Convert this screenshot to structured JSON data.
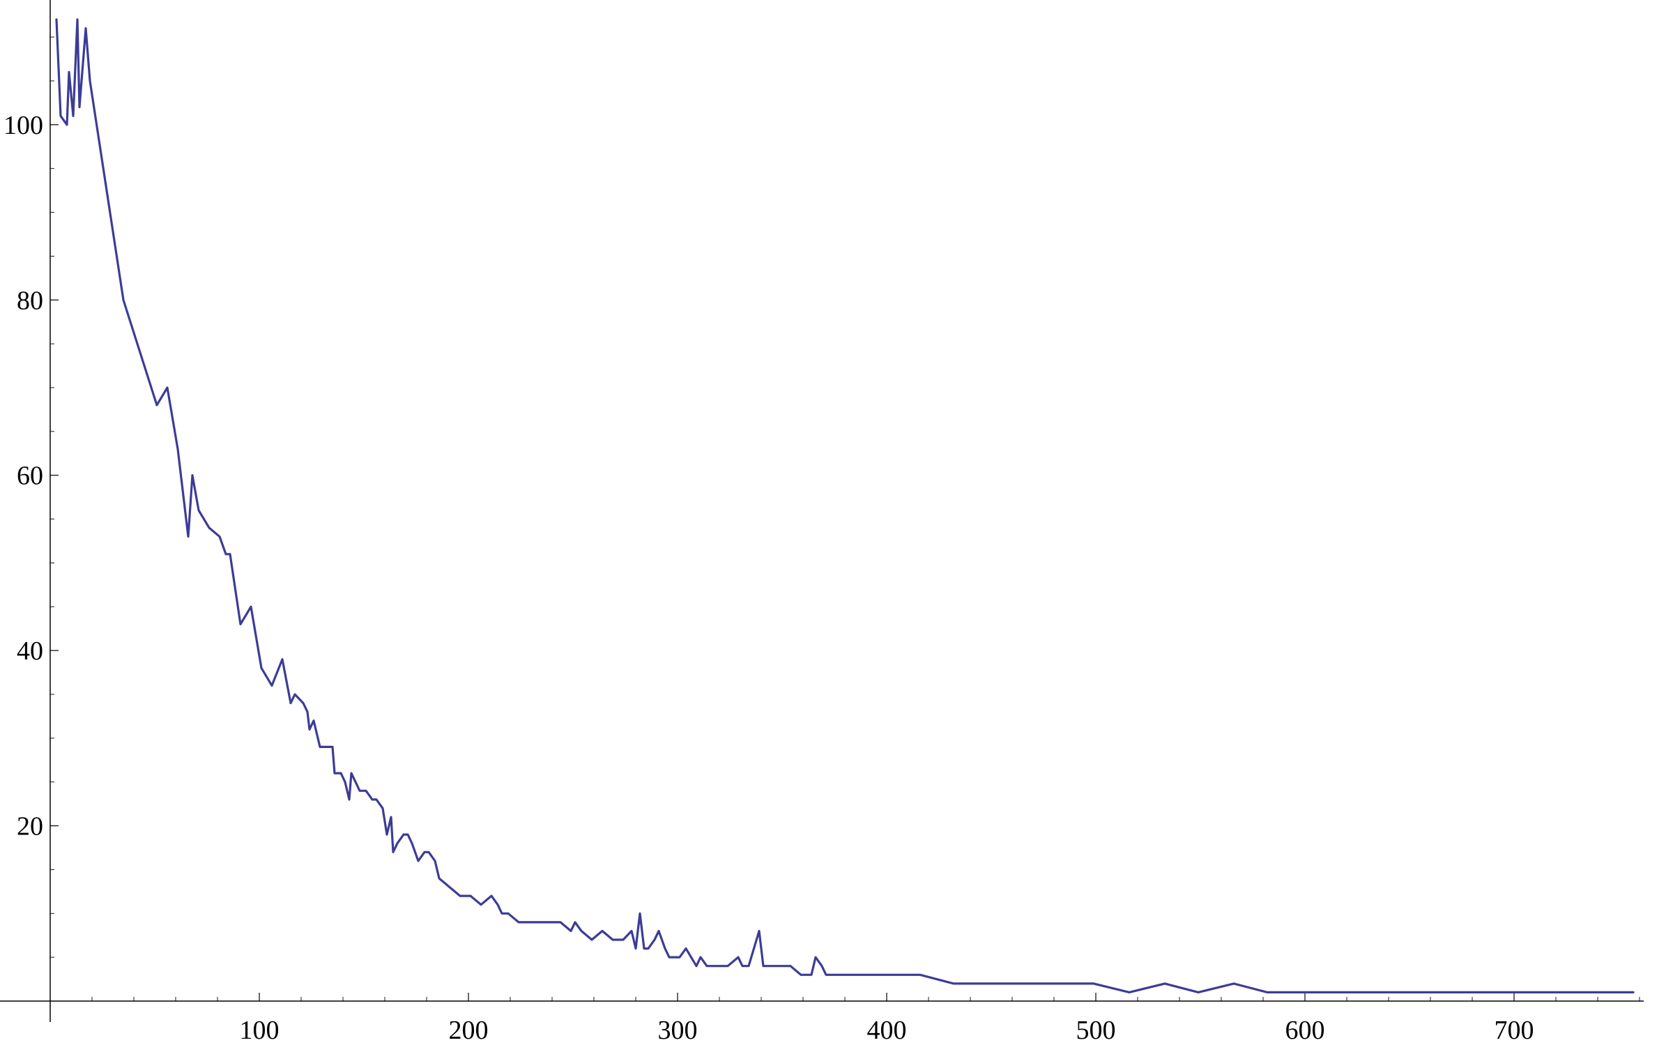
{
  "chart_data": {
    "type": "line",
    "title": "",
    "xlabel": "",
    "ylabel": "",
    "xlim": [
      0,
      760
    ],
    "ylim": [
      0,
      112
    ],
    "x_ticks": [
      100,
      200,
      300,
      400,
      500,
      600,
      700
    ],
    "y_ticks": [
      20,
      40,
      60,
      80,
      100
    ],
    "x_tick_labels": [
      "100",
      "200",
      "300",
      "400",
      "500",
      "600",
      "700"
    ],
    "y_tick_labels": [
      "20",
      "40",
      "60",
      "80",
      "100"
    ],
    "grid": false,
    "legend": "none",
    "line_color": "#3c3c96",
    "series": [
      {
        "x": [
          3,
          5,
          8,
          9,
          11,
          13,
          14,
          17,
          19,
          35,
          51,
          56,
          61,
          66,
          68,
          71,
          76,
          81,
          84,
          86,
          91,
          96,
          101,
          106,
          111,
          115,
          117,
          121,
          123,
          124,
          126,
          129,
          131,
          135,
          136,
          139,
          141,
          143,
          144,
          146,
          148,
          151,
          154,
          156,
          159,
          161,
          163,
          164,
          166,
          169,
          171,
          173,
          176,
          179,
          181,
          184,
          186,
          191,
          196,
          201,
          206,
          211,
          214,
          216,
          219,
          224,
          229,
          234,
          239,
          244,
          249,
          251,
          254,
          259,
          264,
          269,
          271,
          274,
          278,
          280,
          282,
          284,
          286,
          289,
          291,
          294,
          296,
          299,
          301,
          304,
          309,
          311,
          314,
          316,
          319,
          324,
          329,
          331,
          334,
          339,
          341,
          344,
          346,
          349,
          354,
          359,
          364,
          366,
          369,
          371,
          374,
          376,
          379,
          384,
          389,
          394,
          399,
          404,
          409,
          416,
          432,
          449,
          465,
          482,
          499,
          516,
          533,
          549,
          566,
          582,
          599,
          616,
          632,
          649,
          666,
          682,
          699,
          716,
          732,
          757
        ],
        "y": [
          112,
          101,
          100,
          106,
          101,
          112,
          102,
          111,
          105,
          80,
          68,
          70,
          63,
          53,
          60,
          56,
          54,
          53,
          51,
          51,
          43,
          45,
          38,
          36,
          39,
          34,
          35,
          34,
          33,
          31,
          32,
          29,
          29,
          29,
          26,
          26,
          25,
          23,
          26,
          25,
          24,
          24,
          23,
          23,
          22,
          19,
          21,
          17,
          18,
          19,
          19,
          18,
          16,
          17,
          17,
          16,
          14,
          13,
          12,
          12,
          11,
          12,
          11,
          10,
          10,
          9,
          9,
          9,
          9,
          9,
          8,
          9,
          8,
          7,
          8,
          7,
          7,
          7,
          8,
          6,
          10,
          6,
          6,
          7,
          8,
          6,
          5,
          5,
          5,
          6,
          4,
          5,
          4,
          4,
          4,
          4,
          5,
          4,
          4,
          8,
          4,
          4,
          4,
          4,
          4,
          3,
          3,
          5,
          4,
          3,
          3,
          3,
          3,
          3,
          3,
          3,
          3,
          3,
          3,
          3,
          2,
          2,
          2,
          2,
          2,
          1,
          2,
          1,
          2,
          1,
          1,
          1,
          1,
          1,
          1,
          1,
          1,
          1,
          1,
          1
        ]
      }
    ]
  }
}
